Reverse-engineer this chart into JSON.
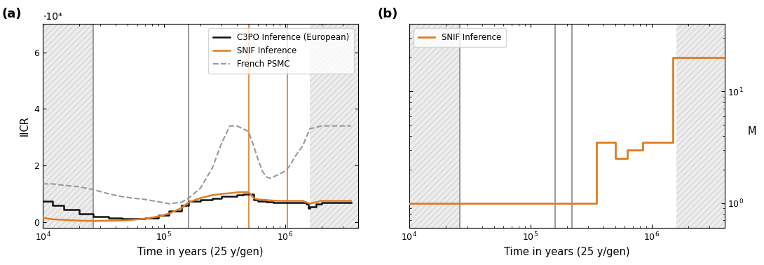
{
  "panel_a": {
    "title": "(a)",
    "ylabel": "IICR",
    "xlabel": "Time in years (25 y/gen)",
    "ylim": [
      -2000,
      70000
    ],
    "yticks": [
      0,
      20000,
      40000,
      60000
    ],
    "ytick_labels": [
      "0",
      "2",
      "4",
      "6"
    ],
    "ylabel_multiplier": "·10⁴",
    "xlim": [
      10000.0,
      4000000.0
    ],
    "shaded_regions_left": {
      "xmin": 10000.0,
      "xmax": 26000.0
    },
    "shaded_regions_right": {
      "xmin": 1600000.0,
      "xmax": 4000000.0
    },
    "vlines_gray": [
      26000.0,
      160000.0
    ],
    "vlines_orange": [
      500000.0,
      1050000.0
    ],
    "c3po_x": [
      10000.0,
      12000.0,
      15000.0,
      20000.0,
      26000.0,
      35000.0,
      45000.0,
      55000.0,
      70000.0,
      90000.0,
      110000.0,
      140000.0,
      160000.0,
      200000.0,
      250000.0,
      300000.0,
      350000.0,
      400000.0,
      450000.0,
      500000.0,
      550000.0,
      600000.0,
      700000.0,
      800000.0,
      900000.0,
      1000000.0,
      1100000.0,
      1200000.0,
      1400000.0,
      1500000.0,
      1550000.0,
      1600000.0,
      1800000.0,
      2000000.0,
      2500000.0,
      3000000.0,
      3500000.0
    ],
    "c3po_y": [
      7500,
      6000,
      4500,
      3000,
      2000,
      1500,
      1200,
      1200,
      1500,
      2500,
      4000,
      6000,
      7500,
      8000,
      8500,
      9000,
      9200,
      9500,
      9800,
      9800,
      8000,
      7500,
      7200,
      7000,
      7000,
      7000,
      7000,
      7000,
      7000,
      6500,
      5000,
      5500,
      6500,
      7000,
      7000,
      7000,
      7000
    ],
    "snif_x": [
      10000.0,
      12000.0,
      15000.0,
      20000.0,
      26000.0,
      35000.0,
      45000.0,
      55000.0,
      70000.0,
      90000.0,
      110000.0,
      140000.0,
      160000.0,
      200000.0,
      250000.0,
      300000.0,
      350000.0,
      400000.0,
      450000.0,
      500000.0,
      550000.0,
      600000.0,
      700000.0,
      800000.0,
      900000.0,
      1000000.0,
      1100000.0,
      1200000.0,
      1400000.0,
      1500000.0,
      1600000.0,
      2000000.0,
      2500000.0,
      3000000.0,
      3500000.0
    ],
    "snif_y": [
      1500,
      1000,
      800,
      500,
      400,
      500,
      600,
      800,
      1200,
      2000,
      3000,
      5000,
      7000,
      8500,
      9500,
      10000,
      10200,
      10500,
      10600,
      10600,
      8500,
      8000,
      7800,
      7600,
      7500,
      7500,
      7500,
      7500,
      7500,
      7000,
      6500,
      7500,
      7500,
      7500,
      7500
    ],
    "psmc_x": [
      10000.0,
      12000.0,
      15000.0,
      20000.0,
      26000.0,
      35000.0,
      45000.0,
      55000.0,
      70000.0,
      90000.0,
      110000.0,
      140000.0,
      160000.0,
      200000.0,
      250000.0,
      300000.0,
      350000.0,
      400000.0,
      450000.0,
      500000.0,
      550000.0,
      600000.0,
      650000.0,
      700000.0,
      750000.0,
      800000.0,
      900000.0,
      1000000.0,
      1100000.0,
      1200000.0,
      1400000.0,
      1600000.0,
      2000000.0,
      2500000.0,
      3000000.0,
      3500000.0
    ],
    "psmc_y": [
      13500,
      13500,
      13000,
      12500,
      11500,
      10000,
      9000,
      8500,
      8000,
      7200,
      6500,
      7000,
      8500,
      12000,
      19000,
      28000,
      34000,
      34000,
      33000,
      32000,
      27000,
      22000,
      18000,
      16000,
      15500,
      16000,
      17000,
      18000,
      20000,
      23000,
      27000,
      33000,
      34000,
      34000,
      34000,
      34000
    ]
  },
  "panel_b": {
    "title": "(b)",
    "ylabel": "M",
    "xlabel": "Time in years (25 y/gen)",
    "ylim_log": [
      0.6,
      40
    ],
    "xlim": [
      10000.0,
      4000000.0
    ],
    "shaded_left": {
      "xmin": 10000.0,
      "xmax": 26000.0
    },
    "shaded_right": {
      "xmin": 1600000.0,
      "xmax": 4000000.0
    },
    "vlines_gray": [
      26000.0,
      160000.0,
      220000.0
    ],
    "snif_step_x": [
      10000.0,
      350000.0,
      350000.0,
      500000.0,
      500000.0,
      630000.0,
      630000.0,
      850000.0,
      850000.0,
      1500000.0,
      1500000.0,
      4000000.0
    ],
    "snif_step_y": [
      1.0,
      1.0,
      3.5,
      3.5,
      2.5,
      2.5,
      3.0,
      3.0,
      3.5,
      3.5,
      20.0,
      20.0
    ]
  },
  "colors": {
    "c3po": "#111111",
    "snif": "#e07b20",
    "psmc": "#999999",
    "vline_gray": "#888888",
    "vline_orange": "#e07b20",
    "shade_color": "#cccccc",
    "shade_alpha": 0.35
  }
}
